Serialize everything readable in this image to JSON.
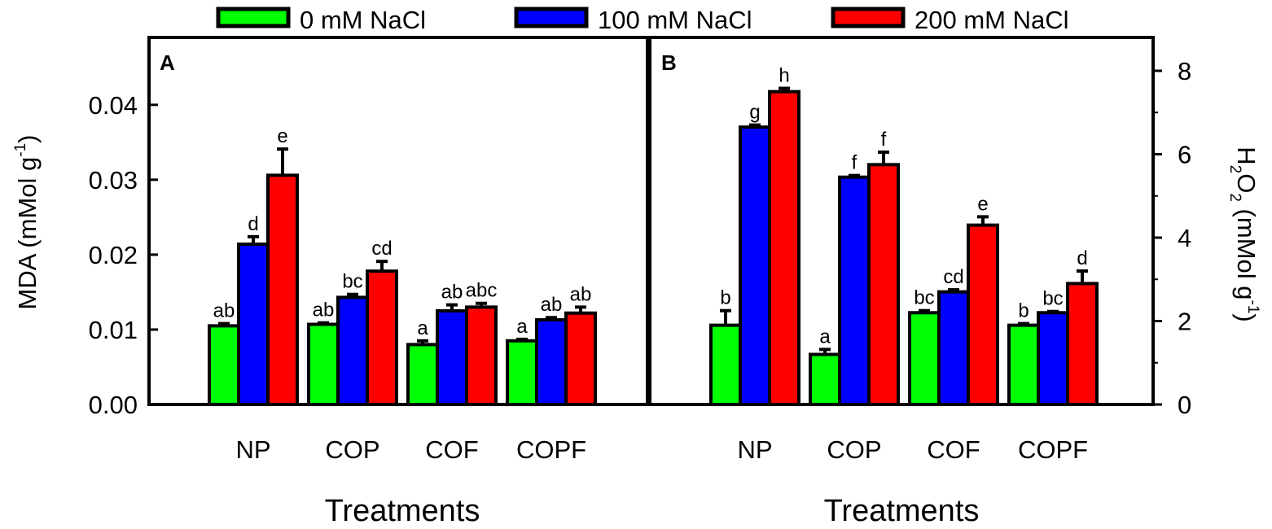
{
  "colors": {
    "green": "#00ff00",
    "blue": "#0000ff",
    "red": "#ff0000",
    "black": "#000000"
  },
  "legend": {
    "items": [
      {
        "label": "0 mM NaCl",
        "color": "#00ff00"
      },
      {
        "label": "100 mM NaCl",
        "color": "#0000ff"
      },
      {
        "label": "200 mM NaCl",
        "color": "#ff0000"
      }
    ]
  },
  "chart_data": [
    {
      "type": "bar",
      "panel_label": "A",
      "xlabel": "Treatments",
      "ylabel_main": "MDA (mMol g",
      "ylabel_sup": "-1",
      "ylabel_close": ")",
      "ylim": [
        0,
        0.049
      ],
      "yticks": [
        0.0,
        0.01,
        0.02,
        0.03,
        0.04
      ],
      "ytick_labels": [
        "0.00",
        "0.01",
        "0.02",
        "0.03",
        "0.04"
      ],
      "categories": [
        "NP",
        "COP",
        "COF",
        "COPF"
      ],
      "series": [
        {
          "name": "0 mM NaCl",
          "values": [
            0.0105,
            0.0107,
            0.008,
            0.0085
          ],
          "errors": [
            0.0003,
            0.0002,
            0.0005,
            0.0002
          ],
          "letters": [
            "ab",
            "ab",
            "a",
            "a"
          ]
        },
        {
          "name": "100 mM NaCl",
          "values": [
            0.0214,
            0.0143,
            0.0125,
            0.0113
          ],
          "errors": [
            0.001,
            0.0004,
            0.0008,
            0.0003
          ],
          "letters": [
            "d",
            "bc",
            "ab",
            "ab"
          ]
        },
        {
          "name": "200 mM NaCl",
          "values": [
            0.0306,
            0.0178,
            0.013,
            0.0122
          ],
          "errors": [
            0.0035,
            0.0013,
            0.0005,
            0.0008
          ],
          "letters": [
            "e",
            "cd",
            "abc",
            "ab"
          ]
        }
      ]
    },
    {
      "type": "bar",
      "panel_label": "B",
      "xlabel": "Treatments",
      "ylabel_h": "H",
      "ylabel_sub1": "2",
      "ylabel_o": "O",
      "ylabel_sub2": "2",
      "ylabel_unit": " (mMol g",
      "ylabel_sup": "-1",
      "ylabel_close": ")",
      "ylim": [
        0,
        8.8
      ],
      "yticks": [
        0,
        2,
        4,
        6,
        8
      ],
      "ytick_labels": [
        "0",
        "2",
        "4",
        "6",
        "8"
      ],
      "categories": [
        "NP",
        "COP",
        "COF",
        "COPF"
      ],
      "series": [
        {
          "name": "0 mM NaCl",
          "values": [
            1.9,
            1.2,
            2.2,
            1.9
          ],
          "errors": [
            0.35,
            0.12,
            0.05,
            0.04
          ],
          "letters": [
            "b",
            "a",
            "bc",
            "b"
          ]
        },
        {
          "name": "100 mM NaCl",
          "values": [
            6.65,
            5.45,
            2.7,
            2.2
          ],
          "errors": [
            0.05,
            0.04,
            0.05,
            0.03
          ],
          "letters": [
            "g",
            "f",
            "cd",
            "bc"
          ]
        },
        {
          "name": "200 mM NaCl",
          "values": [
            7.5,
            5.75,
            4.3,
            2.9
          ],
          "errors": [
            0.08,
            0.3,
            0.2,
            0.3
          ],
          "letters": [
            "h",
            "f",
            "e",
            "d"
          ]
        }
      ]
    }
  ]
}
